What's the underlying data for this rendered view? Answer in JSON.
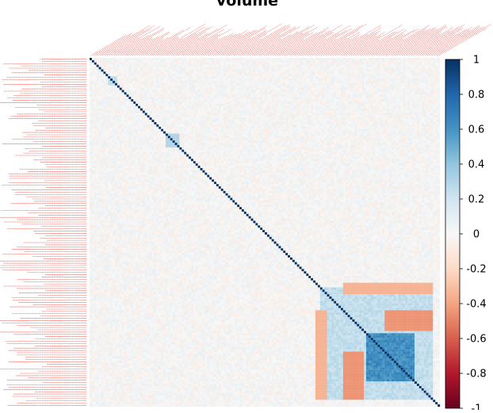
{
  "chart_data": {
    "type": "heatmap",
    "title": "volume",
    "matrix_size": 152,
    "diagonal_value": 1,
    "colorbar": {
      "min": -1,
      "max": 1,
      "ticks": [
        1,
        0.8,
        0.6,
        0.4,
        0.2,
        0,
        -0.2,
        -0.4,
        -0.6,
        -0.8,
        -1
      ],
      "tick_labels": [
        "1",
        "0.8",
        "0.6",
        "0.4",
        "0.2",
        "0",
        "-0.2",
        "-0.4",
        "-0.6",
        "-0.8",
        "-1"
      ],
      "colors": [
        "#67001f",
        "#b2182b",
        "#d6604d",
        "#f4a582",
        "#fddbc7",
        "#f7f7f7",
        "#d1e5f0",
        "#92c5de",
        "#4393c3",
        "#2166ac",
        "#053061"
      ]
    },
    "label_color": "#e8352b",
    "tick_label_side": "left and top",
    "legend_placement": "right"
  }
}
